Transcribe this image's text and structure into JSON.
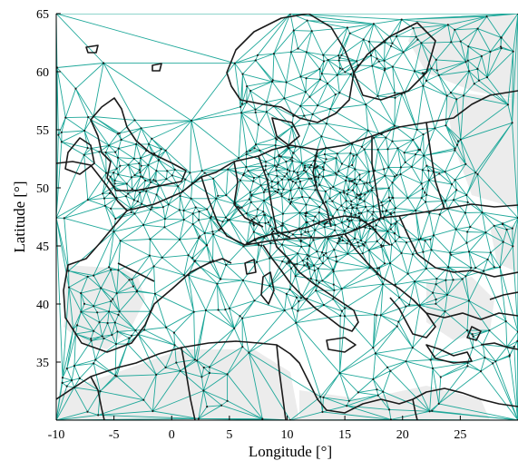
{
  "map": {
    "x_axis": {
      "label": "Longitude [°]",
      "range": [
        -10,
        30
      ],
      "ticks": [
        -10,
        -5,
        0,
        5,
        10,
        15,
        20,
        25
      ],
      "tick_labels": [
        "-10",
        "-5",
        "0",
        "5",
        "10",
        "15",
        "20",
        "25"
      ]
    },
    "y_axis": {
      "label": "Latitude [°]",
      "range": [
        30,
        65
      ],
      "ticks": [
        35,
        40,
        45,
        50,
        55,
        60,
        65
      ],
      "tick_labels": [
        "35",
        "40",
        "45",
        "50",
        "55",
        "60",
        "65"
      ]
    },
    "colors": {
      "mesh_edges": "#1fa89a",
      "coastline": "#1a1a1a",
      "land_fill": "#ececec",
      "nodes": "#1a1a1a",
      "axes": "#000000"
    },
    "features": {
      "mesh": "Delaunay triangulation of network nodes across Europe and North Africa",
      "coastlines": "European and North African country borders and coastlines"
    }
  }
}
